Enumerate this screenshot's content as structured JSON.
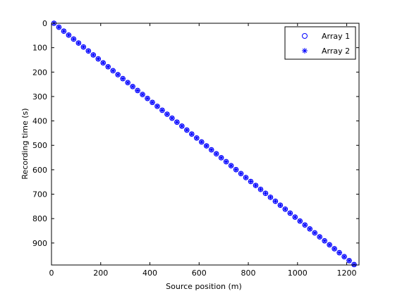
{
  "chart_data": {
    "type": "scatter",
    "title": "",
    "xlabel": "Source position (m)",
    "ylabel": "Recording time (s)",
    "xlim": [
      0,
      1250
    ],
    "ylim": [
      0,
      990
    ],
    "y_reversed": true,
    "grid": false,
    "legend_position": "top-right",
    "x_ticks": [
      "0",
      "200",
      "400",
      "600",
      "800",
      "1000",
      "1200"
    ],
    "y_ticks": [
      "0",
      "100",
      "200",
      "300",
      "400",
      "500",
      "600",
      "700",
      "800",
      "900"
    ],
    "x_tick_values": [
      0,
      200,
      400,
      600,
      800,
      1000,
      1200
    ],
    "y_tick_values": [
      0,
      100,
      200,
      300,
      400,
      500,
      600,
      700,
      800,
      900
    ],
    "series": [
      {
        "name": "Array 1",
        "marker": "circle",
        "color": "#0000ff",
        "x_start": 10,
        "x_step": 20,
        "count": 62,
        "y_start": 0,
        "y_step": 16.2
      },
      {
        "name": "Array 2",
        "marker": "asterisk",
        "color": "#0000ff",
        "x_start": 10,
        "x_step": 20,
        "count": 62,
        "y_start": 0,
        "y_step": 16.2
      }
    ]
  }
}
